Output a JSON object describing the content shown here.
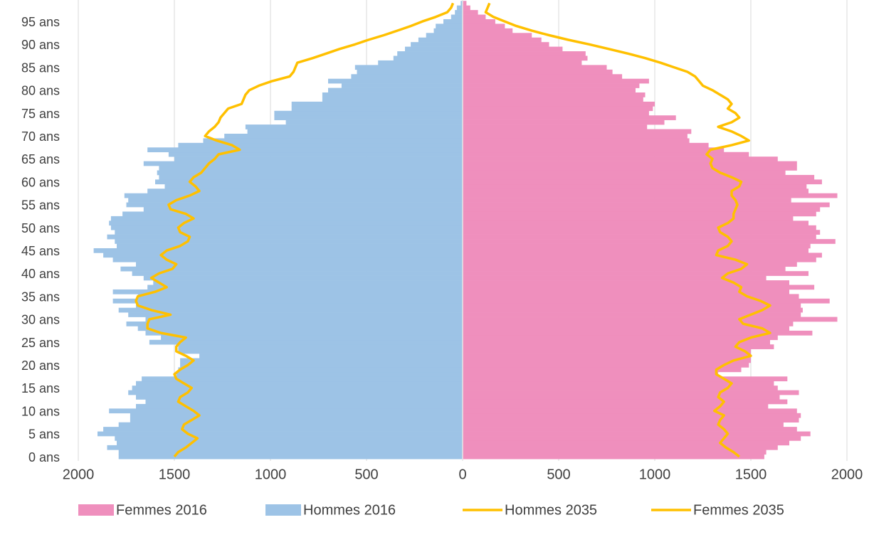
{
  "chart_data": {
    "type": "bar",
    "orientation": "horizontal",
    "categories": [
      "0 ans",
      null,
      null,
      null,
      null,
      "5 ans",
      null,
      null,
      null,
      null,
      "10 ans",
      null,
      null,
      null,
      null,
      "15 ans",
      null,
      null,
      null,
      null,
      "20 ans",
      null,
      null,
      null,
      null,
      "25 ans",
      null,
      null,
      null,
      null,
      "30 ans",
      null,
      null,
      null,
      null,
      "35 ans",
      null,
      null,
      null,
      null,
      "40 ans",
      null,
      null,
      null,
      null,
      "45 ans",
      null,
      null,
      null,
      null,
      "50 ans",
      null,
      null,
      null,
      null,
      "55 ans",
      null,
      null,
      null,
      null,
      "60 ans",
      null,
      null,
      null,
      null,
      "65 ans",
      null,
      null,
      null,
      null,
      "70 ans",
      null,
      null,
      null,
      null,
      "75 ans",
      null,
      null,
      null,
      null,
      "80 ans",
      null,
      null,
      null,
      null,
      "85 ans",
      null,
      null,
      null,
      null,
      "90 ans",
      null,
      null,
      null,
      null,
      "95 ans",
      null,
      null,
      null,
      null
    ],
    "xlim": [
      -2000,
      2000
    ],
    "xticks": [
      {
        "value": -2000,
        "label": "2000"
      },
      {
        "value": -1500,
        "label": "1500"
      },
      {
        "value": -1000,
        "label": "1000"
      },
      {
        "value": -500,
        "label": "500"
      },
      0,
      500,
      1000,
      1500,
      2000
    ],
    "grid": true,
    "legend": "bottom",
    "series": [
      {
        "name": "Femmes 2016",
        "kind": "bar",
        "color": "#ef8fbd",
        "values": [
          1570,
          1580,
          1640,
          1700,
          1760,
          1810,
          1740,
          1670,
          1750,
          1760,
          1740,
          1590,
          1690,
          1650,
          1750,
          1640,
          1620,
          1690,
          1330,
          1450,
          1490,
          1500,
          1500,
          1500,
          1620,
          1600,
          1640,
          1820,
          1700,
          1720,
          1950,
          1760,
          1770,
          1760,
          1910,
          1750,
          1700,
          1830,
          1700,
          1580,
          1800,
          1680,
          1740,
          1840,
          1870,
          1800,
          1810,
          1940,
          1840,
          1860,
          1840,
          1800,
          1720,
          1840,
          1860,
          1910,
          1710,
          1950,
          1800,
          1790,
          1870,
          1830,
          1680,
          1740,
          1740,
          1640,
          1490,
          1360,
          1280,
          1180,
          1170,
          1190,
          960,
          1050,
          1110,
          970,
          990,
          1000,
          940,
          950,
          900,
          920,
          970,
          830,
          780,
          750,
          620,
          650,
          640,
          520,
          450,
          410,
          360,
          260,
          220,
          170,
          120,
          80,
          40,
          20
        ]
      },
      {
        "name": "Hommes 2016",
        "kind": "bar",
        "color": "#9dc3e6",
        "values": [
          -1790,
          -1790,
          -1850,
          -1800,
          -1810,
          -1900,
          -1870,
          -1790,
          -1730,
          -1730,
          -1840,
          -1700,
          -1650,
          -1700,
          -1740,
          -1720,
          -1700,
          -1670,
          -1490,
          -1480,
          -1470,
          -1470,
          -1370,
          -1480,
          -1480,
          -1630,
          -1570,
          -1650,
          -1690,
          -1750,
          -1650,
          -1740,
          -1790,
          -1700,
          -1820,
          -1690,
          -1820,
          -1640,
          -1610,
          -1660,
          -1720,
          -1780,
          -1700,
          -1820,
          -1870,
          -1920,
          -1800,
          -1810,
          -1850,
          -1810,
          -1830,
          -1840,
          -1830,
          -1770,
          -1660,
          -1750,
          -1740,
          -1760,
          -1640,
          -1550,
          -1600,
          -1580,
          -1590,
          -1580,
          -1660,
          -1500,
          -1530,
          -1640,
          -1480,
          -1350,
          -1240,
          -1120,
          -1130,
          -920,
          -980,
          -980,
          -890,
          -890,
          -730,
          -730,
          -700,
          -630,
          -700,
          -580,
          -550,
          -560,
          -440,
          -360,
          -340,
          -300,
          -270,
          -230,
          -190,
          -150,
          -140,
          -100,
          -60,
          -40,
          -30,
          -10
        ]
      },
      {
        "name": "Hommes 2035",
        "kind": "line",
        "color": "#ffc000",
        "values": [
          -1500,
          -1480,
          -1440,
          -1410,
          -1380,
          -1430,
          -1460,
          -1450,
          -1410,
          -1370,
          -1400,
          -1440,
          -1480,
          -1470,
          -1430,
          -1410,
          -1450,
          -1490,
          -1500,
          -1470,
          -1430,
          -1400,
          -1440,
          -1490,
          -1490,
          -1470,
          -1440,
          -1570,
          -1640,
          -1640,
          -1630,
          -1520,
          -1620,
          -1690,
          -1700,
          -1690,
          -1600,
          -1540,
          -1580,
          -1620,
          -1580,
          -1510,
          -1490,
          -1540,
          -1570,
          -1540,
          -1470,
          -1430,
          -1420,
          -1470,
          -1480,
          -1450,
          -1400,
          -1440,
          -1520,
          -1530,
          -1490,
          -1420,
          -1370,
          -1390,
          -1420,
          -1400,
          -1360,
          -1340,
          -1320,
          -1290,
          -1270,
          -1160,
          -1200,
          -1280,
          -1340,
          -1320,
          -1290,
          -1270,
          -1260,
          -1240,
          -1220,
          -1150,
          -1140,
          -1130,
          -1110,
          -1060,
          -990,
          -900,
          -880,
          -870,
          -860,
          -780,
          -710,
          -640,
          -560,
          -490,
          -410,
          -340,
          -270,
          -210,
          -140,
          -80,
          -60,
          -50
        ]
      },
      {
        "name": "Femmes 2035",
        "kind": "line",
        "color": "#ffc000",
        "values": [
          1440,
          1410,
          1370,
          1340,
          1360,
          1380,
          1360,
          1330,
          1340,
          1360,
          1310,
          1340,
          1360,
          1330,
          1340,
          1380,
          1400,
          1360,
          1320,
          1320,
          1360,
          1410,
          1500,
          1470,
          1420,
          1440,
          1500,
          1600,
          1560,
          1460,
          1440,
          1500,
          1560,
          1600,
          1550,
          1480,
          1440,
          1450,
          1410,
          1350,
          1380,
          1450,
          1480,
          1420,
          1320,
          1330,
          1380,
          1400,
          1380,
          1340,
          1330,
          1380,
          1410,
          1410,
          1420,
          1430,
          1420,
          1400,
          1400,
          1440,
          1450,
          1400,
          1340,
          1300,
          1290,
          1300,
          1270,
          1290,
          1400,
          1490,
          1450,
          1400,
          1330,
          1400,
          1440,
          1420,
          1380,
          1400,
          1380,
          1340,
          1300,
          1250,
          1230,
          1210,
          1170,
          1100,
          1030,
          950,
          860,
          760,
          660,
          550,
          450,
          360,
          280,
          220,
          160,
          120,
          130,
          140
        ]
      }
    ]
  }
}
